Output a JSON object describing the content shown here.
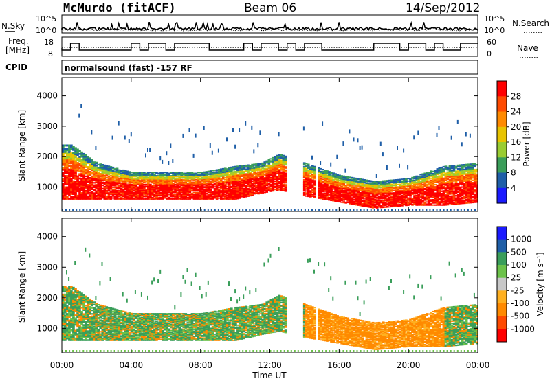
{
  "header": {
    "station": "McMurdo (fitACF)",
    "beam": "Beam 06",
    "date": "14/Sep/2012"
  },
  "top_panel": {
    "left_label": "N.Sky",
    "left_ticks": [
      "10^5",
      "10^0"
    ],
    "right_ticks": [
      "10^5",
      "10^0"
    ],
    "right_label": "N.Search",
    "right_label_style": "dotted"
  },
  "freq_panel": {
    "left_label_1": "Freq.",
    "left_label_2": "[MHz]",
    "left_ticks": [
      "18",
      "8"
    ],
    "right_ticks": [
      "60",
      "0"
    ],
    "right_label": "Nave",
    "right_label_style": "dotted"
  },
  "cpid": {
    "label": "CPID",
    "mode": "normalsound (fast) -157 RF"
  },
  "x_axis": {
    "title": "Time UT",
    "ticks": [
      "00:00",
      "04:00",
      "08:00",
      "12:00",
      "16:00",
      "20:00",
      "00:00"
    ]
  },
  "power_panel": {
    "ylabel": "Slant Range [km]",
    "yticks": [
      "4000",
      "3000",
      "2000",
      "1000"
    ],
    "colorbar_title": "Power [dB]",
    "colorbar_ticks": [
      "28",
      "24",
      "20",
      "16",
      "12",
      "8",
      "4"
    ],
    "colors": [
      "#ff0000",
      "#ff4a00",
      "#ff8a00",
      "#e8c400",
      "#9acd32",
      "#3a9e5a",
      "#1f5fa8",
      "#1a1aff"
    ]
  },
  "velocity_panel": {
    "ylabel": "Slant Range [km]",
    "yticks": [
      "4000",
      "3000",
      "2000",
      "1000"
    ],
    "colorbar_title": "Velocity [m s⁻¹]",
    "colorbar_ticks": [
      "1000",
      "500",
      "100",
      "25",
      "-25",
      "-100",
      "-500",
      "-1000"
    ],
    "colors": [
      "#1a1aff",
      "#1f5fa8",
      "#3a9e5a",
      "#6cc24a",
      "#c8c8c8",
      "#ffb020",
      "#ff8a00",
      "#ff4a00",
      "#ff0000"
    ]
  },
  "chart_data": {
    "type": "heatmap",
    "title": "McMurdo (fitACF)  Beam 06  14/Sep/2012",
    "xlabel": "Time UT",
    "ylabel": "Slant Range [km]",
    "x_range_hours": [
      0,
      24
    ],
    "ylim_km": [
      200,
      4600
    ],
    "power_db_range": [
      0,
      32
    ],
    "velocity_range_ms": [
      -1200,
      1200
    ],
    "scatter_band_approx": [
      {
        "t": 0.5,
        "lower_km": 600,
        "upper_km": 2400
      },
      {
        "t": 2,
        "lower_km": 600,
        "upper_km": 1800
      },
      {
        "t": 4,
        "lower_km": 600,
        "upper_km": 1500
      },
      {
        "t": 6,
        "lower_km": 600,
        "upper_km": 1500
      },
      {
        "t": 8,
        "lower_km": 600,
        "upper_km": 1500
      },
      {
        "t": 10,
        "lower_km": 600,
        "upper_km": 1700
      },
      {
        "t": 11.5,
        "lower_km": 800,
        "upper_km": 1800
      },
      {
        "t": 12.5,
        "lower_km": 900,
        "upper_km": 2100
      },
      {
        "t": 14,
        "lower_km": 700,
        "upper_km": 1800
      },
      {
        "t": 16,
        "lower_km": 500,
        "upper_km": 1400
      },
      {
        "t": 18,
        "lower_km": 300,
        "upper_km": 1200
      },
      {
        "t": 20,
        "lower_km": 400,
        "upper_km": 1300
      },
      {
        "t": 22,
        "lower_km": 400,
        "upper_km": 1700
      },
      {
        "t": 24,
        "lower_km": 500,
        "upper_km": 1800
      }
    ]
  }
}
